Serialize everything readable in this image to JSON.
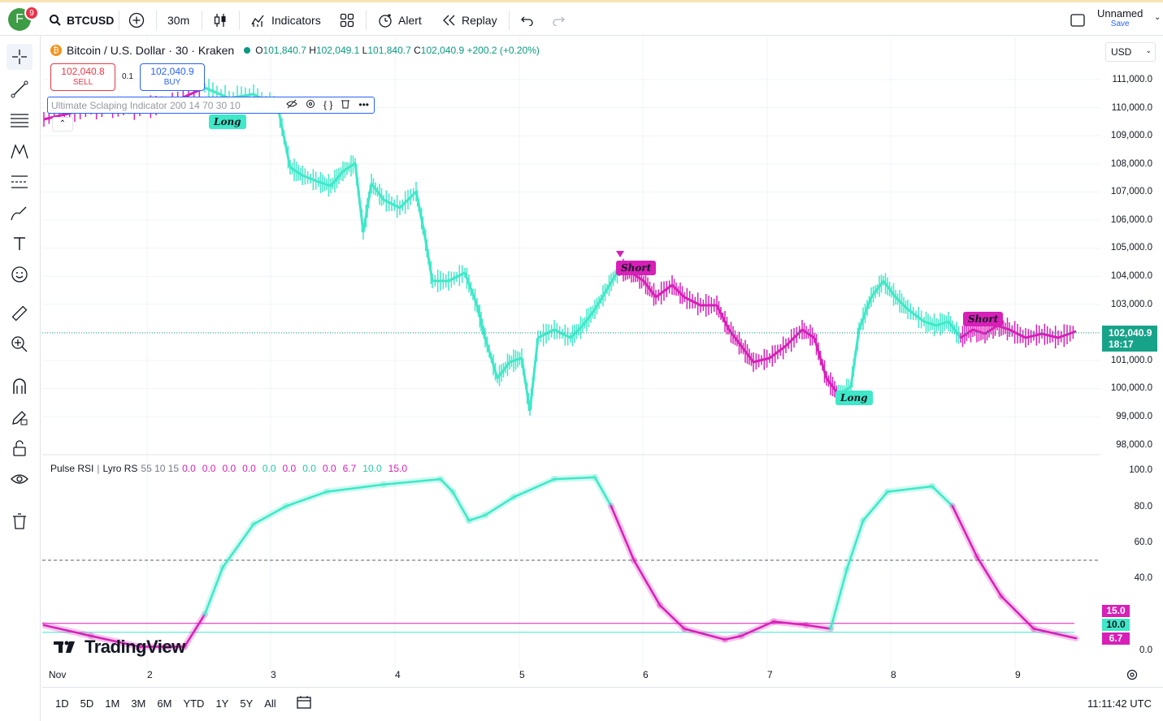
{
  "topbar": {
    "avatar_letter": "F",
    "notification_count": "9",
    "symbol": "BTCUSD",
    "interval": "30m",
    "indicators": "Indicators",
    "alert": "Alert",
    "replay": "Replay",
    "layout_name": "Unnamed",
    "save_label": "Save"
  },
  "legend": {
    "title": "Bitcoin / U.S. Dollar · 30 · Kraken",
    "open_label": "O",
    "open": "101,840.7",
    "high_label": "H",
    "high": "102,049.1",
    "low_label": "L",
    "low": "101,840.7",
    "close_label": "C",
    "close": "102,040.9",
    "change": "+200.2 (+0.20%)"
  },
  "trade": {
    "sell_price": "102,040.8",
    "sell_label": "SELL",
    "spread": "0.1",
    "buy_price": "102,040.9",
    "buy_label": "BUY"
  },
  "indicator": {
    "name": "Ultimate Sclaping Indicator 200 14 70 30 10"
  },
  "price_axis": {
    "currency": "USD",
    "ticks": [
      "111,000.0",
      "110,000.0",
      "109,000.0",
      "108,000.0",
      "107,000.0",
      "106,000.0",
      "105,000.0",
      "104,000.0",
      "103,000.0",
      "101,000.0",
      "100,000.0",
      "99,000.0",
      "98,000.0"
    ],
    "current_price": "102,040.9",
    "countdown": "18:17"
  },
  "rsi": {
    "name": "Pulse RSI",
    "sub": "Lyro RS",
    "params": "55 10 15",
    "values": [
      "0.0",
      "0.0",
      "0.0",
      "0.0",
      "0.0",
      "0.0",
      "0.0",
      "0.0",
      "6.7",
      "10.0",
      "15.0"
    ],
    "ticks": [
      "100.0",
      "80.0",
      "60.0",
      "40.0",
      "0.0"
    ],
    "badge_upper": "15.0",
    "badge_mid": "10.0",
    "badge_value": "6.7"
  },
  "signals": {
    "long1": "Long",
    "short1": "Short",
    "long2": "Long",
    "short2": "Short"
  },
  "time_axis": [
    "Nov",
    "2",
    "3",
    "4",
    "5",
    "6",
    "7",
    "8",
    "9"
  ],
  "bottom": {
    "ranges": [
      "1D",
      "5D",
      "1M",
      "3M",
      "6M",
      "YTD",
      "1Y",
      "5Y",
      "All"
    ],
    "clock": "11:11:42 UTC"
  },
  "brand": "TradingView",
  "colors": {
    "bull": "#3ee8c8",
    "bear": "#d81fb8",
    "accent": "#2962ff",
    "price_label": "#17a38a"
  }
}
